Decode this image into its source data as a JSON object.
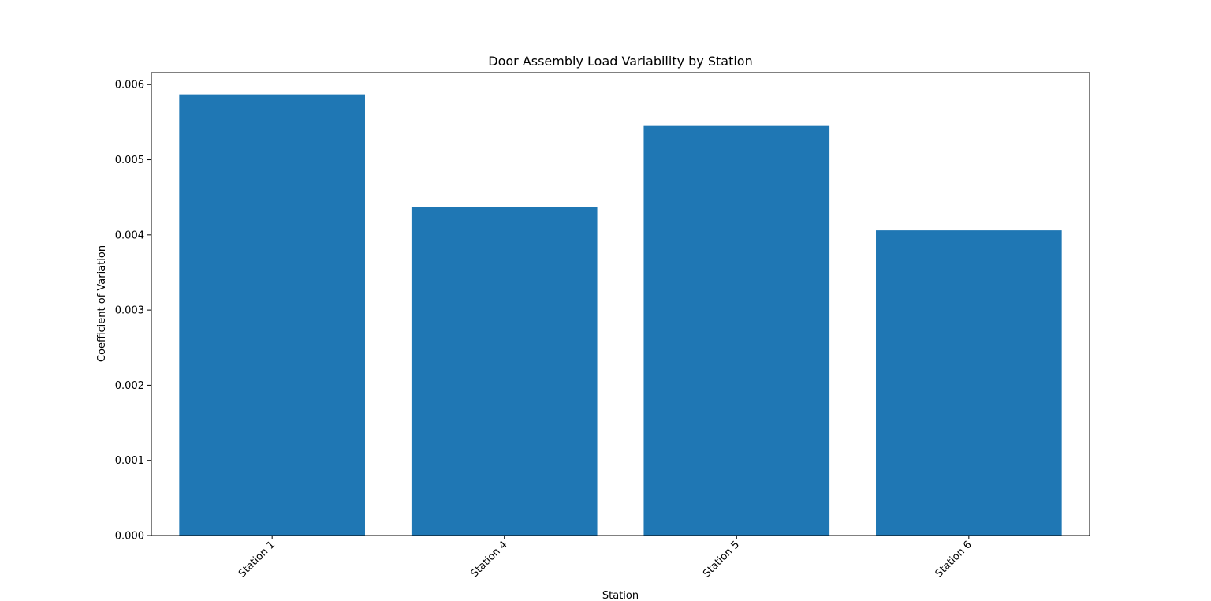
{
  "chart_data": {
    "type": "bar",
    "title": "Door Assembly Load Variability by Station",
    "xlabel": "Station",
    "ylabel": "Coefficient of Variation",
    "categories": [
      "Station 1",
      "Station 4",
      "Station 5",
      "Station 6"
    ],
    "values": [
      0.00587,
      0.00437,
      0.00545,
      0.00406
    ],
    "ylim": [
      0,
      0.00616
    ],
    "yticks": [
      "0.000",
      "0.001",
      "0.002",
      "0.003",
      "0.004",
      "0.005",
      "0.006"
    ],
    "ytick_values": [
      0,
      0.001,
      0.002,
      0.003,
      0.004,
      0.005,
      0.006
    ],
    "bar_color": "#1f77b4",
    "grid": false,
    "legend": "none"
  }
}
